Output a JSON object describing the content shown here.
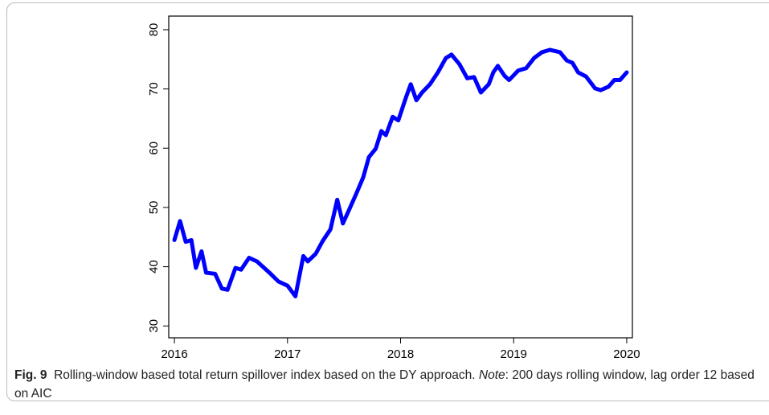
{
  "chart_data": {
    "type": "line",
    "x": [
      2016.0,
      2016.05,
      2016.1,
      2016.15,
      2016.19,
      2016.24,
      2016.28,
      2016.36,
      2016.42,
      2016.47,
      2016.54,
      2016.59,
      2016.66,
      2016.73,
      2016.84,
      2016.92,
      2017.0,
      2017.07,
      2017.14,
      2017.18,
      2017.25,
      2017.31,
      2017.38,
      2017.44,
      2017.49,
      2017.54,
      2017.61,
      2017.67,
      2017.72,
      2017.78,
      2017.83,
      2017.87,
      2017.93,
      2017.98,
      2018.05,
      2018.09,
      2018.14,
      2018.19,
      2018.26,
      2018.33,
      2018.4,
      2018.45,
      2018.52,
      2018.59,
      2018.65,
      2018.71,
      2018.78,
      2018.82,
      2018.86,
      2018.92,
      2018.96,
      2019.04,
      2019.11,
      2019.18,
      2019.25,
      2019.32,
      2019.41,
      2019.47,
      2019.52,
      2019.57,
      2019.64,
      2019.72,
      2019.77,
      2019.84,
      2019.89,
      2019.94,
      2020.0
    ],
    "series": [
      {
        "color": "#0000ff",
        "values": [
          44.5,
          47.7,
          44.2,
          44.5,
          39.8,
          42.6,
          39,
          38.8,
          36.3,
          36.1,
          39.8,
          39.5,
          41.5,
          40.9,
          39,
          37.5,
          36.8,
          35.0,
          41.8,
          40.9,
          42.2,
          44.3,
          46.3,
          51.3,
          47.3,
          49.4,
          52.4,
          55.1,
          58.5,
          59.9,
          62.9,
          62.2,
          65.3,
          64.7,
          68.7,
          70.8,
          68.1,
          69.4,
          70.8,
          72.8,
          75.2,
          75.8,
          74.2,
          71.8,
          72,
          69.4,
          70.8,
          72.8,
          73.9,
          72.2,
          71.5,
          73.1,
          73.5,
          75.2,
          76.2,
          76.6,
          76.2,
          74.8,
          74.4,
          72.8,
          72.1,
          70.1,
          69.8,
          70.4,
          71.5,
          71.5,
          72.8
        ]
      }
    ],
    "xlim": [
      2015.95,
      2020.05
    ],
    "xticks": [
      2016,
      2017,
      2018,
      2019,
      2020
    ],
    "ylim": [
      28,
      82.3
    ],
    "yticks": [
      30,
      40,
      50,
      60,
      70,
      80
    ]
  },
  "caption": {
    "label": "Fig. 9",
    "text": "Rolling-window based total return spillover index based on the DY approach.",
    "note_label": "Note",
    "note": ": 200 days rolling window, lag order 12 based on AIC"
  }
}
